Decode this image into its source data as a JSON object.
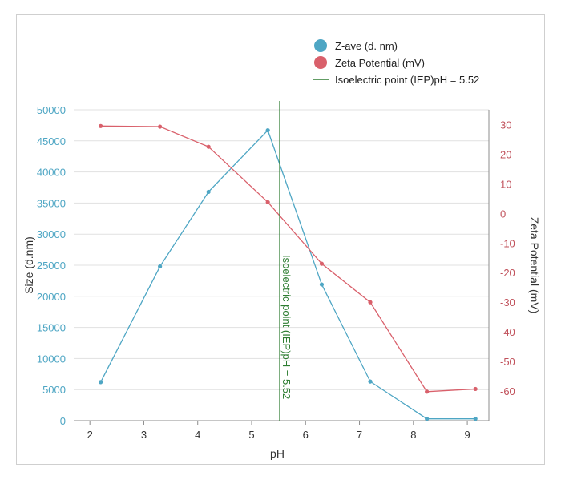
{
  "chart_data": {
    "type": "line",
    "xlabel": "pH",
    "ylabel_left": "Size (d.nm)",
    "ylabel_right": "Zeta Potential (mV)",
    "xlim": [
      1.7,
      9.4
    ],
    "ylim_left": [
      0,
      50000
    ],
    "ylim_right": [
      -70,
      35
    ],
    "x_ticks": [
      2,
      3,
      4,
      5,
      6,
      7,
      8,
      9
    ],
    "y_left_ticks": [
      0,
      5000,
      10000,
      15000,
      20000,
      25000,
      30000,
      35000,
      40000,
      45000,
      50000
    ],
    "y_right_ticks": [
      30,
      20,
      10,
      0,
      -10,
      -20,
      -30,
      -40,
      -50,
      -60
    ],
    "grid": "horizontal",
    "legend_placement": "top-center",
    "series": [
      {
        "name": "Z-ave (d. nm)",
        "axis": "left",
        "color": "#4ea6c4",
        "x": [
          2.2,
          3.3,
          4.2,
          5.3,
          6.3,
          7.2,
          8.25,
          9.15
        ],
        "values": [
          6200,
          24800,
          36800,
          46700,
          21900,
          6300,
          300,
          300
        ]
      },
      {
        "name": "Zeta Potential (mV)",
        "axis": "right",
        "color": "#d9606b",
        "x": [
          2.2,
          3.3,
          4.2,
          5.3,
          6.3,
          7.2,
          8.25,
          9.15
        ],
        "values": [
          29.5,
          29.3,
          22.5,
          3.8,
          -17,
          -30,
          -60.2,
          -59.3
        ]
      }
    ],
    "reference_line": {
      "name": "Isoelectric point (IEP)pH = 5.52",
      "x": 5.52,
      "color": "#2e7d32",
      "label": "Isoelectric point (IEP)pH = 5.52"
    }
  }
}
